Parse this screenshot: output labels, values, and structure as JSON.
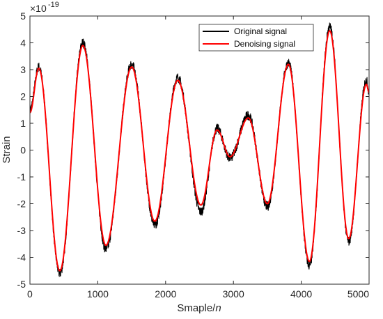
{
  "chart_data": {
    "type": "line",
    "title": "",
    "xlabel": "Smaple/",
    "xlabel_italic": "n",
    "ylabel": "Strain",
    "y_exponent_base": "×10",
    "y_exponent_power": "-19",
    "xlim": [
      0,
      5000
    ],
    "ylim": [
      -5,
      5
    ],
    "x_ticks": [
      "0",
      "1000",
      "2000",
      "3000",
      "4000",
      "5000"
    ],
    "y_ticks": [
      "-5",
      "-4",
      "-3",
      "-2",
      "-1",
      "0",
      "1",
      "2",
      "3",
      "4",
      "5"
    ],
    "grid": false,
    "legend_position": "top-right",
    "series": [
      {
        "name": "Original signal",
        "color": "#000000",
        "noise_amplitude": 0.18,
        "x": [
          0,
          130,
          440,
          780,
          1120,
          1500,
          1840,
          2180,
          2520,
          2760,
          2950,
          3220,
          3500,
          3810,
          4120,
          4420,
          4700,
          4960,
          5000
        ],
        "y": [
          1.5,
          3.1,
          -4.6,
          4.0,
          -3.7,
          3.2,
          -2.8,
          2.7,
          -2.3,
          0.8,
          -0.3,
          1.3,
          -2.1,
          3.25,
          -4.3,
          4.6,
          -3.4,
          2.6,
          2.2
        ]
      },
      {
        "name": "Denoising signal",
        "color": "#ff0000",
        "noise_amplitude": 0,
        "x": [
          0,
          130,
          440,
          780,
          1120,
          1500,
          1840,
          2180,
          2520,
          2760,
          2950,
          3220,
          3500,
          3810,
          4120,
          4420,
          4700,
          4960,
          5000
        ],
        "y": [
          1.4,
          3.05,
          -4.5,
          3.9,
          -3.55,
          3.1,
          -2.65,
          2.6,
          -2.05,
          0.75,
          -0.25,
          1.2,
          -2.0,
          3.2,
          -4.15,
          4.45,
          -3.3,
          2.45,
          2.15
        ]
      }
    ]
  }
}
